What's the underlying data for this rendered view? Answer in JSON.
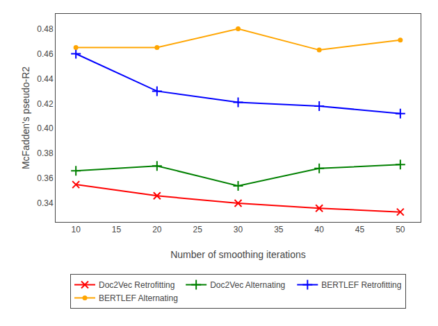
{
  "chart_data": {
    "type": "line",
    "x_label": "Number of smoothing iterations",
    "y_label": "McFadden's pseudo-R2",
    "x": [
      10,
      20,
      30,
      40,
      50
    ],
    "series": [
      {
        "name": "Doc2Vec Retrofitting",
        "color": "#ff0000",
        "marker": "x",
        "values": [
          0.355,
          0.346,
          0.34,
          0.336,
          0.333
        ]
      },
      {
        "name": "Doc2Vec Alternating",
        "color": "#008000",
        "marker": "plus",
        "values": [
          0.366,
          0.37,
          0.354,
          0.368,
          0.371
        ]
      },
      {
        "name": "BERTLEF Retrofitting",
        "color": "#0000ff",
        "marker": "plus",
        "values": [
          0.46,
          0.43,
          0.421,
          0.418,
          0.412
        ]
      },
      {
        "name": "BERTLEF Alternating",
        "color": "#ffa500",
        "marker": "circle",
        "values": [
          0.465,
          0.465,
          0.48,
          0.463,
          0.471
        ]
      }
    ],
    "xlim": [
      7.5,
      52.5
    ],
    "ylim": [
      0.325,
      0.492
    ],
    "xticks": [
      10,
      15,
      20,
      25,
      30,
      35,
      40,
      45,
      50
    ],
    "yticks": [
      0.34,
      0.36,
      0.38,
      {
        "value": 0.4,
        "label": "0.40"
      },
      0.42,
      0.44,
      0.46,
      0.48
    ],
    "grid": false,
    "legend": "bottom"
  }
}
